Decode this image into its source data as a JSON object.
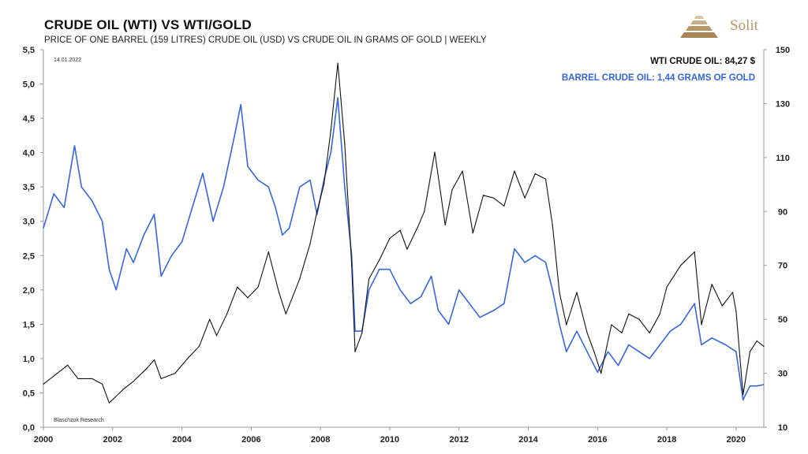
{
  "header": {
    "title": "CRUDE OIL (WTI) VS WTI/GOLD",
    "subtitle": "PRICE OF ONE BARREL (159 LITRES) CRUDE OIL (USD) VS CRUDE OIL IN GRAMS OF GOLD | WEEKLY",
    "logo_text": "Solit",
    "logo_color": "#b8966a"
  },
  "chart_data": {
    "type": "line",
    "date_label": "14.01.2022",
    "source": "Blaschzok Research",
    "x_ticks": [
      "2000",
      "2002",
      "2004",
      "2006",
      "2008",
      "2010",
      "2012",
      "2014",
      "2016",
      "2018",
      "2020"
    ],
    "xlim": [
      2000,
      2020.8
    ],
    "left_axis": {
      "ylim": [
        0,
        5.5
      ],
      "ticks": [
        "0,0",
        "0,5",
        "1,0",
        "1,5",
        "2,0",
        "2,5",
        "3,0",
        "3,5",
        "4,0",
        "4,5",
        "5,0",
        "5,5"
      ]
    },
    "right_axis": {
      "ylim": [
        10,
        150
      ],
      "ticks": [
        "10",
        "30",
        "50",
        "70",
        "90",
        "110",
        "130",
        "150"
      ]
    },
    "grid": false,
    "legend": "top-right",
    "series": [
      {
        "name": "WTI CRUDE OIL: 84,27 $",
        "axis": "right",
        "color": "#111111",
        "points": [
          [
            2000.0,
            26
          ],
          [
            2000.4,
            30
          ],
          [
            2000.7,
            33
          ],
          [
            2001.0,
            28
          ],
          [
            2001.4,
            28
          ],
          [
            2001.7,
            26
          ],
          [
            2001.9,
            19
          ],
          [
            2002.3,
            24
          ],
          [
            2002.6,
            27
          ],
          [
            2003.0,
            32
          ],
          [
            2003.2,
            35
          ],
          [
            2003.4,
            28
          ],
          [
            2003.8,
            30
          ],
          [
            2004.2,
            36
          ],
          [
            2004.5,
            40
          ],
          [
            2004.8,
            50
          ],
          [
            2005.0,
            44
          ],
          [
            2005.3,
            52
          ],
          [
            2005.6,
            62
          ],
          [
            2005.9,
            58
          ],
          [
            2006.2,
            62
          ],
          [
            2006.5,
            75
          ],
          [
            2006.8,
            60
          ],
          [
            2007.0,
            52
          ],
          [
            2007.4,
            65
          ],
          [
            2007.7,
            78
          ],
          [
            2007.9,
            90
          ],
          [
            2008.1,
            100
          ],
          [
            2008.3,
            120
          ],
          [
            2008.5,
            145
          ],
          [
            2008.7,
            115
          ],
          [
            2008.9,
            70
          ],
          [
            2009.0,
            38
          ],
          [
            2009.2,
            45
          ],
          [
            2009.4,
            65
          ],
          [
            2009.7,
            72
          ],
          [
            2010.0,
            80
          ],
          [
            2010.3,
            83
          ],
          [
            2010.5,
            76
          ],
          [
            2010.8,
            84
          ],
          [
            2011.0,
            90
          ],
          [
            2011.3,
            112
          ],
          [
            2011.6,
            85
          ],
          [
            2011.8,
            98
          ],
          [
            2012.1,
            105
          ],
          [
            2012.4,
            82
          ],
          [
            2012.7,
            96
          ],
          [
            2013.0,
            95
          ],
          [
            2013.3,
            92
          ],
          [
            2013.6,
            105
          ],
          [
            2013.9,
            95
          ],
          [
            2014.2,
            104
          ],
          [
            2014.5,
            102
          ],
          [
            2014.7,
            85
          ],
          [
            2014.9,
            60
          ],
          [
            2015.1,
            48
          ],
          [
            2015.4,
            60
          ],
          [
            2015.7,
            45
          ],
          [
            2015.9,
            38
          ],
          [
            2016.1,
            30
          ],
          [
            2016.4,
            48
          ],
          [
            2016.7,
            45
          ],
          [
            2016.9,
            52
          ],
          [
            2017.2,
            50
          ],
          [
            2017.5,
            45
          ],
          [
            2017.8,
            52
          ],
          [
            2018.0,
            62
          ],
          [
            2018.4,
            70
          ],
          [
            2018.8,
            75
          ],
          [
            2019.0,
            48
          ],
          [
            2019.3,
            63
          ],
          [
            2019.6,
            55
          ],
          [
            2019.9,
            60
          ],
          [
            2020.0,
            53
          ],
          [
            2020.2,
            22
          ],
          [
            2020.4,
            38
          ],
          [
            2020.6,
            42
          ],
          [
            2020.8,
            40
          ]
        ]
      },
      {
        "name": "BARREL CRUDE OIL: 1,44 GRAMS OF  GOLD",
        "axis": "left",
        "color": "#3366e0",
        "points": [
          [
            2000.0,
            2.9
          ],
          [
            2000.3,
            3.4
          ],
          [
            2000.6,
            3.2
          ],
          [
            2000.8,
            3.8
          ],
          [
            2000.9,
            4.1
          ],
          [
            2001.1,
            3.5
          ],
          [
            2001.4,
            3.3
          ],
          [
            2001.7,
            3.0
          ],
          [
            2001.9,
            2.3
          ],
          [
            2002.1,
            2.0
          ],
          [
            2002.4,
            2.6
          ],
          [
            2002.6,
            2.4
          ],
          [
            2002.9,
            2.8
          ],
          [
            2003.2,
            3.1
          ],
          [
            2003.4,
            2.2
          ],
          [
            2003.7,
            2.5
          ],
          [
            2004.0,
            2.7
          ],
          [
            2004.3,
            3.2
          ],
          [
            2004.6,
            3.7
          ],
          [
            2004.9,
            3.0
          ],
          [
            2005.2,
            3.5
          ],
          [
            2005.5,
            4.2
          ],
          [
            2005.7,
            4.7
          ],
          [
            2005.9,
            3.8
          ],
          [
            2006.2,
            3.6
          ],
          [
            2006.5,
            3.5
          ],
          [
            2006.7,
            3.2
          ],
          [
            2006.9,
            2.8
          ],
          [
            2007.1,
            2.9
          ],
          [
            2007.4,
            3.5
          ],
          [
            2007.7,
            3.6
          ],
          [
            2007.9,
            3.1
          ],
          [
            2008.1,
            3.6
          ],
          [
            2008.3,
            4.0
          ],
          [
            2008.5,
            4.8
          ],
          [
            2008.7,
            3.5
          ],
          [
            2008.9,
            2.5
          ],
          [
            2009.0,
            1.4
          ],
          [
            2009.2,
            1.4
          ],
          [
            2009.4,
            2.0
          ],
          [
            2009.7,
            2.3
          ],
          [
            2010.0,
            2.3
          ],
          [
            2010.3,
            2.0
          ],
          [
            2010.6,
            1.8
          ],
          [
            2010.9,
            1.9
          ],
          [
            2011.2,
            2.2
          ],
          [
            2011.4,
            1.7
          ],
          [
            2011.7,
            1.5
          ],
          [
            2012.0,
            2.0
          ],
          [
            2012.3,
            1.8
          ],
          [
            2012.6,
            1.6
          ],
          [
            2013.0,
            1.7
          ],
          [
            2013.3,
            1.8
          ],
          [
            2013.6,
            2.6
          ],
          [
            2013.9,
            2.4
          ],
          [
            2014.2,
            2.5
          ],
          [
            2014.5,
            2.4
          ],
          [
            2014.7,
            2.0
          ],
          [
            2014.9,
            1.5
          ],
          [
            2015.1,
            1.1
          ],
          [
            2015.4,
            1.4
          ],
          [
            2015.7,
            1.1
          ],
          [
            2016.0,
            0.8
          ],
          [
            2016.3,
            1.1
          ],
          [
            2016.6,
            0.9
          ],
          [
            2016.9,
            1.2
          ],
          [
            2017.2,
            1.1
          ],
          [
            2017.5,
            1.0
          ],
          [
            2017.8,
            1.2
          ],
          [
            2018.1,
            1.4
          ],
          [
            2018.4,
            1.5
          ],
          [
            2018.8,
            1.8
          ],
          [
            2019.0,
            1.2
          ],
          [
            2019.3,
            1.3
          ],
          [
            2019.7,
            1.2
          ],
          [
            2020.0,
            1.1
          ],
          [
            2020.2,
            0.4
          ],
          [
            2020.4,
            0.6
          ],
          [
            2020.6,
            0.6
          ],
          [
            2020.8,
            0.62
          ]
        ]
      }
    ]
  }
}
